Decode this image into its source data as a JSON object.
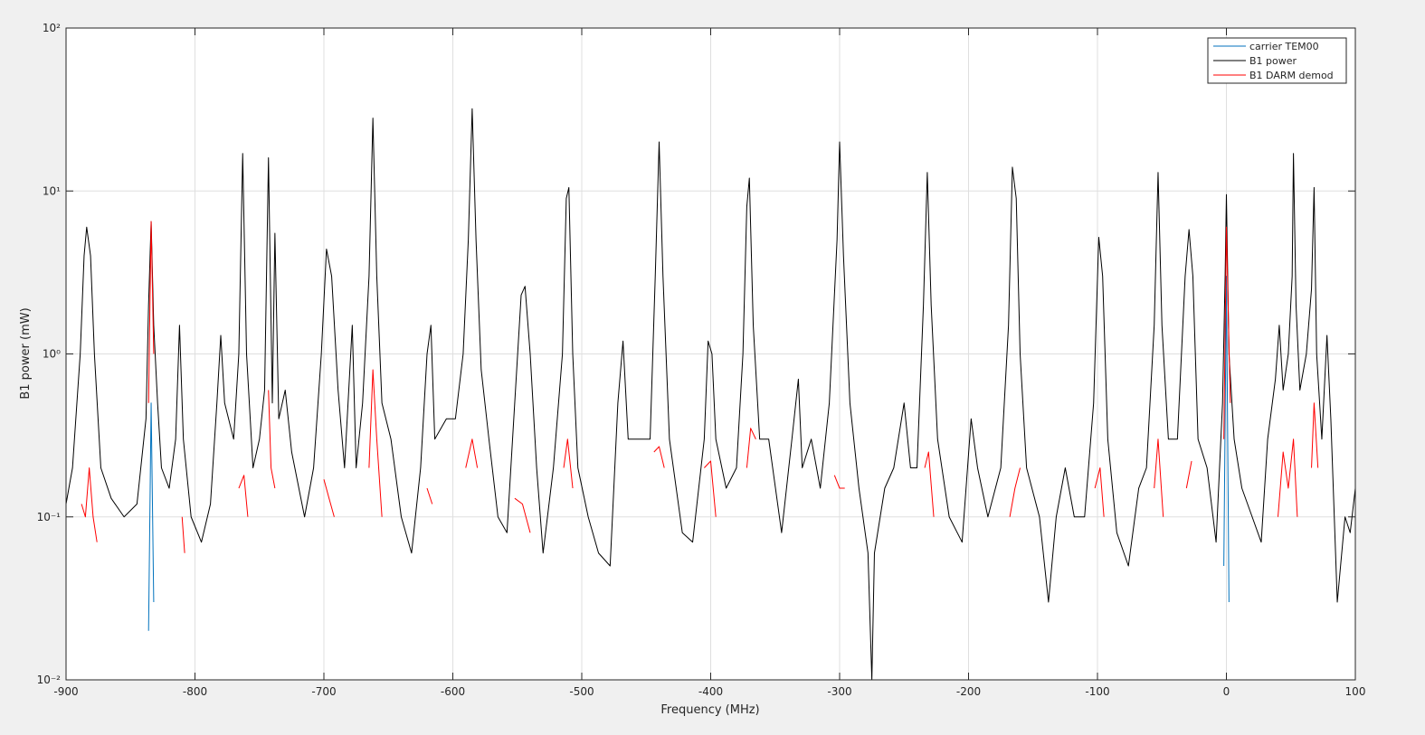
{
  "chart_data": {
    "type": "line",
    "xlabel": "Frequency (MHz)",
    "ylabel": "B1 power (mW)",
    "xlim": [
      -900,
      100
    ],
    "xticks": [
      -900,
      -800,
      -700,
      -600,
      -500,
      -400,
      -300,
      -200,
      -100,
      0,
      100
    ],
    "ylim": [
      0.01,
      100
    ],
    "ylog": true,
    "yticks": [
      {
        "value": 0.01,
        "label": "10⁻²"
      },
      {
        "value": 0.1,
        "label": "10⁻¹"
      },
      {
        "value": 1,
        "label": "10⁰"
      },
      {
        "value": 10,
        "label": "10¹"
      },
      {
        "value": 100,
        "label": "10²"
      }
    ],
    "grid": true,
    "legend": "northeast",
    "series": [
      {
        "name": "carrier TEM00",
        "color": "#0072bd",
        "x": [
          -840,
          -836,
          -834,
          -832,
          -829,
          -4,
          -2,
          0,
          2,
          4
        ],
        "values": [
          null,
          0.02,
          0.5,
          0.03,
          null,
          null,
          0.05,
          3,
          0.03,
          null
        ]
      },
      {
        "name": "B1 power",
        "color": "#000000",
        "x": [
          -900,
          -895,
          -889,
          -886,
          -884,
          -881,
          -878,
          -873,
          -865,
          -855,
          -845,
          -838,
          -836,
          -834,
          -832,
          -829,
          -826,
          -820,
          -815,
          -812,
          -809,
          -803,
          -795,
          -788,
          -783,
          -780,
          -777,
          -770,
          -766,
          -763,
          -760,
          -755,
          -750,
          -746,
          -743,
          -740,
          -738,
          -735,
          -730,
          -725,
          -715,
          -708,
          -702,
          -698,
          -694,
          -689,
          -684,
          -678,
          -675,
          -670,
          -665,
          -662,
          -659,
          -655,
          -648,
          -640,
          -632,
          -625,
          -620,
          -617,
          -614,
          -605,
          -598,
          -592,
          -588,
          -585,
          -582,
          -578,
          -572,
          -565,
          -558,
          -552,
          -547,
          -544,
          -540,
          -535,
          -530,
          -522,
          -515,
          -512,
          -510,
          -507,
          -503,
          -495,
          -487,
          -478,
          -472,
          -468,
          -464,
          -455,
          -447,
          -443,
          -440,
          -437,
          -432,
          -422,
          -414,
          -405,
          -402,
          -399,
          -396,
          -388,
          -380,
          -375,
          -372,
          -370,
          -367,
          -362,
          -355,
          -345,
          -337,
          -332,
          -329,
          -322,
          -315,
          -308,
          -302,
          -300,
          -297,
          -292,
          -285,
          -278,
          -275,
          -273,
          -265,
          -258,
          -250,
          -245,
          -240,
          -235,
          -232,
          -229,
          -224,
          -215,
          -205,
          -198,
          -193,
          -185,
          -175,
          -169,
          -166,
          -163,
          -160,
          -155,
          -145,
          -138,
          -132,
          -125,
          -118,
          -110,
          -103,
          -99,
          -96,
          -92,
          -85,
          -76,
          -68,
          -62,
          -56,
          -53,
          -50,
          -45,
          -38,
          -32,
          -29,
          -26,
          -22,
          -15,
          -8,
          -3,
          -1,
          0,
          2,
          6,
          12,
          20,
          27,
          32,
          38,
          41,
          44,
          48,
          51,
          52,
          54,
          57,
          62,
          66,
          68,
          70,
          74,
          78,
          81,
          86,
          92,
          96,
          100
        ],
        "values": [
          0.12,
          0.2,
          1,
          4,
          6,
          4,
          1,
          0.2,
          0.13,
          0.1,
          0.12,
          0.4,
          2,
          6.5,
          1.5,
          0.5,
          0.2,
          0.15,
          0.3,
          1.5,
          0.3,
          0.1,
          0.07,
          0.12,
          0.5,
          1.3,
          0.5,
          0.3,
          1,
          17,
          1,
          0.2,
          0.3,
          0.6,
          16,
          0.5,
          5.5,
          0.4,
          0.6,
          0.25,
          0.1,
          0.2,
          1,
          4.4,
          3,
          0.6,
          0.2,
          1.5,
          0.2,
          0.5,
          3,
          28,
          3,
          0.5,
          0.3,
          0.1,
          0.06,
          0.2,
          1,
          1.5,
          0.3,
          0.4,
          0.4,
          1,
          5,
          32,
          5,
          0.8,
          0.3,
          0.1,
          0.08,
          0.5,
          2.3,
          2.6,
          1,
          0.2,
          0.06,
          0.2,
          1,
          9,
          10.5,
          1,
          0.2,
          0.1,
          0.06,
          0.05,
          0.5,
          1.2,
          0.3,
          0.3,
          0.3,
          3,
          20,
          3,
          0.3,
          0.08,
          0.07,
          0.3,
          1.2,
          1,
          0.3,
          0.15,
          0.2,
          1,
          8,
          12,
          1.5,
          0.3,
          0.3,
          0.08,
          0.3,
          0.7,
          0.2,
          0.3,
          0.15,
          0.5,
          5,
          20,
          4,
          0.5,
          0.15,
          0.06,
          0.01,
          0.06,
          0.15,
          0.2,
          0.5,
          0.2,
          0.2,
          2,
          13,
          2,
          0.3,
          0.1,
          0.07,
          0.4,
          0.2,
          0.1,
          0.2,
          1.5,
          14,
          9,
          1,
          0.2,
          0.1,
          0.03,
          0.1,
          0.2,
          0.1,
          0.1,
          0.5,
          5.2,
          3,
          0.3,
          0.08,
          0.05,
          0.15,
          0.2,
          1.5,
          13,
          1.5,
          0.3,
          0.3,
          3,
          5.8,
          3,
          0.3,
          0.2,
          0.07,
          0.5,
          3,
          9.5,
          1,
          0.3,
          0.15,
          0.1,
          0.07,
          0.3,
          0.7,
          1.5,
          0.6,
          1,
          3,
          17,
          2,
          0.6,
          1,
          2.5,
          10.5,
          1,
          0.3,
          1.3,
          0.4,
          0.03,
          0.1,
          0.08,
          0.15
        ]
      },
      {
        "name": "B1 DARM demod",
        "color": "#ff0000",
        "x": [
          -890,
          -888,
          -885,
          -882,
          -879,
          -876,
          -873,
          -838,
          -836,
          -834,
          -832,
          -830,
          -812,
          -810,
          -808,
          -806,
          -785,
          -780,
          -776,
          -770,
          -766,
          -762,
          -759,
          -755,
          -746,
          -743,
          -741,
          -738,
          -736,
          -705,
          -700,
          -696,
          -692,
          -689,
          -684,
          -682,
          -678,
          -670,
          -665,
          -662,
          -659,
          -655,
          -652,
          -625,
          -620,
          -616,
          -612,
          -595,
          -590,
          -585,
          -581,
          -576,
          -560,
          -552,
          -546,
          -540,
          -537,
          -518,
          -514,
          -511,
          -507,
          -503,
          -470,
          -467,
          -464,
          -448,
          -444,
          -440,
          -436,
          -432,
          -410,
          -405,
          -400,
          -396,
          -392,
          -378,
          -372,
          -369,
          -365,
          -360,
          -308,
          -304,
          -300,
          -296,
          -292,
          -238,
          -234,
          -231,
          -227,
          -225,
          -172,
          -168,
          -164,
          -160,
          -156,
          -105,
          -102,
          -98,
          -95,
          -92,
          -60,
          -56,
          -53,
          -49,
          -45,
          -35,
          -31,
          -27,
          -24,
          -5,
          -2,
          0,
          3,
          5,
          35,
          40,
          44,
          48,
          52,
          55,
          58,
          62,
          66,
          68,
          71,
          75
        ],
        "values": [
          null,
          0.12,
          0.1,
          0.2,
          0.1,
          0.07,
          null,
          null,
          0.5,
          6.5,
          1,
          null,
          null,
          0.1,
          0.06,
          null,
          null,
          0.1,
          null,
          null,
          0.15,
          0.18,
          0.1,
          null,
          null,
          0.6,
          0.2,
          0.15,
          null,
          null,
          0.17,
          0.13,
          0.1,
          null,
          null,
          0.15,
          null,
          null,
          0.2,
          0.8,
          0.3,
          0.1,
          null,
          null,
          0.15,
          0.12,
          null,
          null,
          0.2,
          0.3,
          0.2,
          null,
          null,
          0.13,
          0.12,
          0.08,
          null,
          null,
          0.2,
          0.3,
          0.15,
          null,
          null,
          0.1,
          null,
          null,
          0.25,
          0.27,
          0.2,
          null,
          null,
          0.2,
          0.22,
          0.1,
          null,
          null,
          0.2,
          0.35,
          0.3,
          null,
          null,
          0.18,
          0.15,
          0.15,
          null,
          null,
          0.2,
          0.25,
          0.1,
          null,
          null,
          0.1,
          0.15,
          0.2,
          null,
          null,
          0.15,
          0.2,
          0.1,
          null,
          null,
          0.15,
          0.3,
          0.1,
          null,
          null,
          0.15,
          0.22,
          null,
          null,
          0.3,
          6,
          0.5,
          null,
          null,
          0.1,
          0.25,
          0.15,
          0.3,
          0.1,
          null,
          null,
          0.2,
          0.5,
          0.2,
          null
        ]
      }
    ]
  }
}
